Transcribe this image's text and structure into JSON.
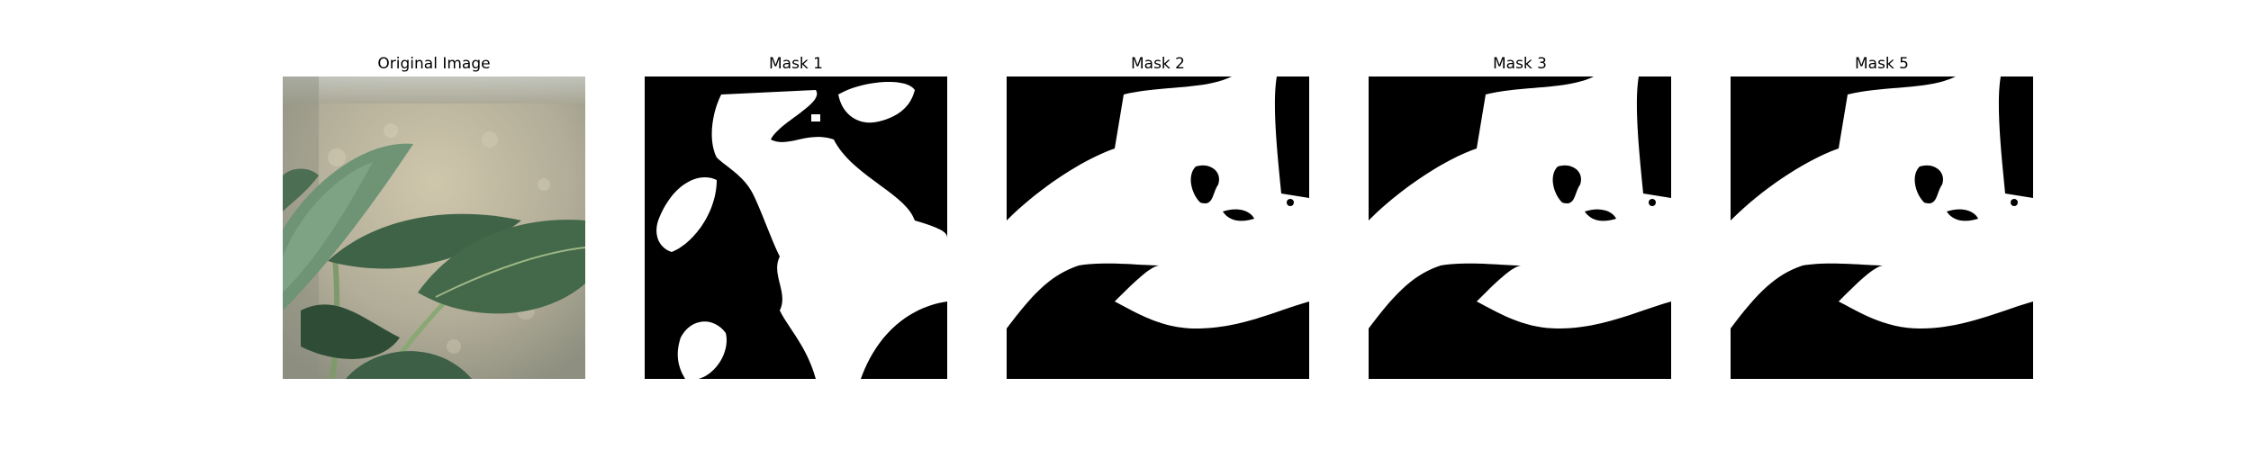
{
  "figure": {
    "panels": [
      {
        "title": "Original Image"
      },
      {
        "title": "Mask 1"
      },
      {
        "title": "Mask 2"
      },
      {
        "title": "Mask 3"
      },
      {
        "title": "Mask 5"
      }
    ]
  },
  "colors": {
    "background": "#ffffff",
    "mask_foreground": "#ffffff",
    "mask_background": "#000000",
    "leaf_dark": "#3e5f43",
    "leaf_light": "#6f9372",
    "bokeh_bg": "#b7b29d"
  }
}
